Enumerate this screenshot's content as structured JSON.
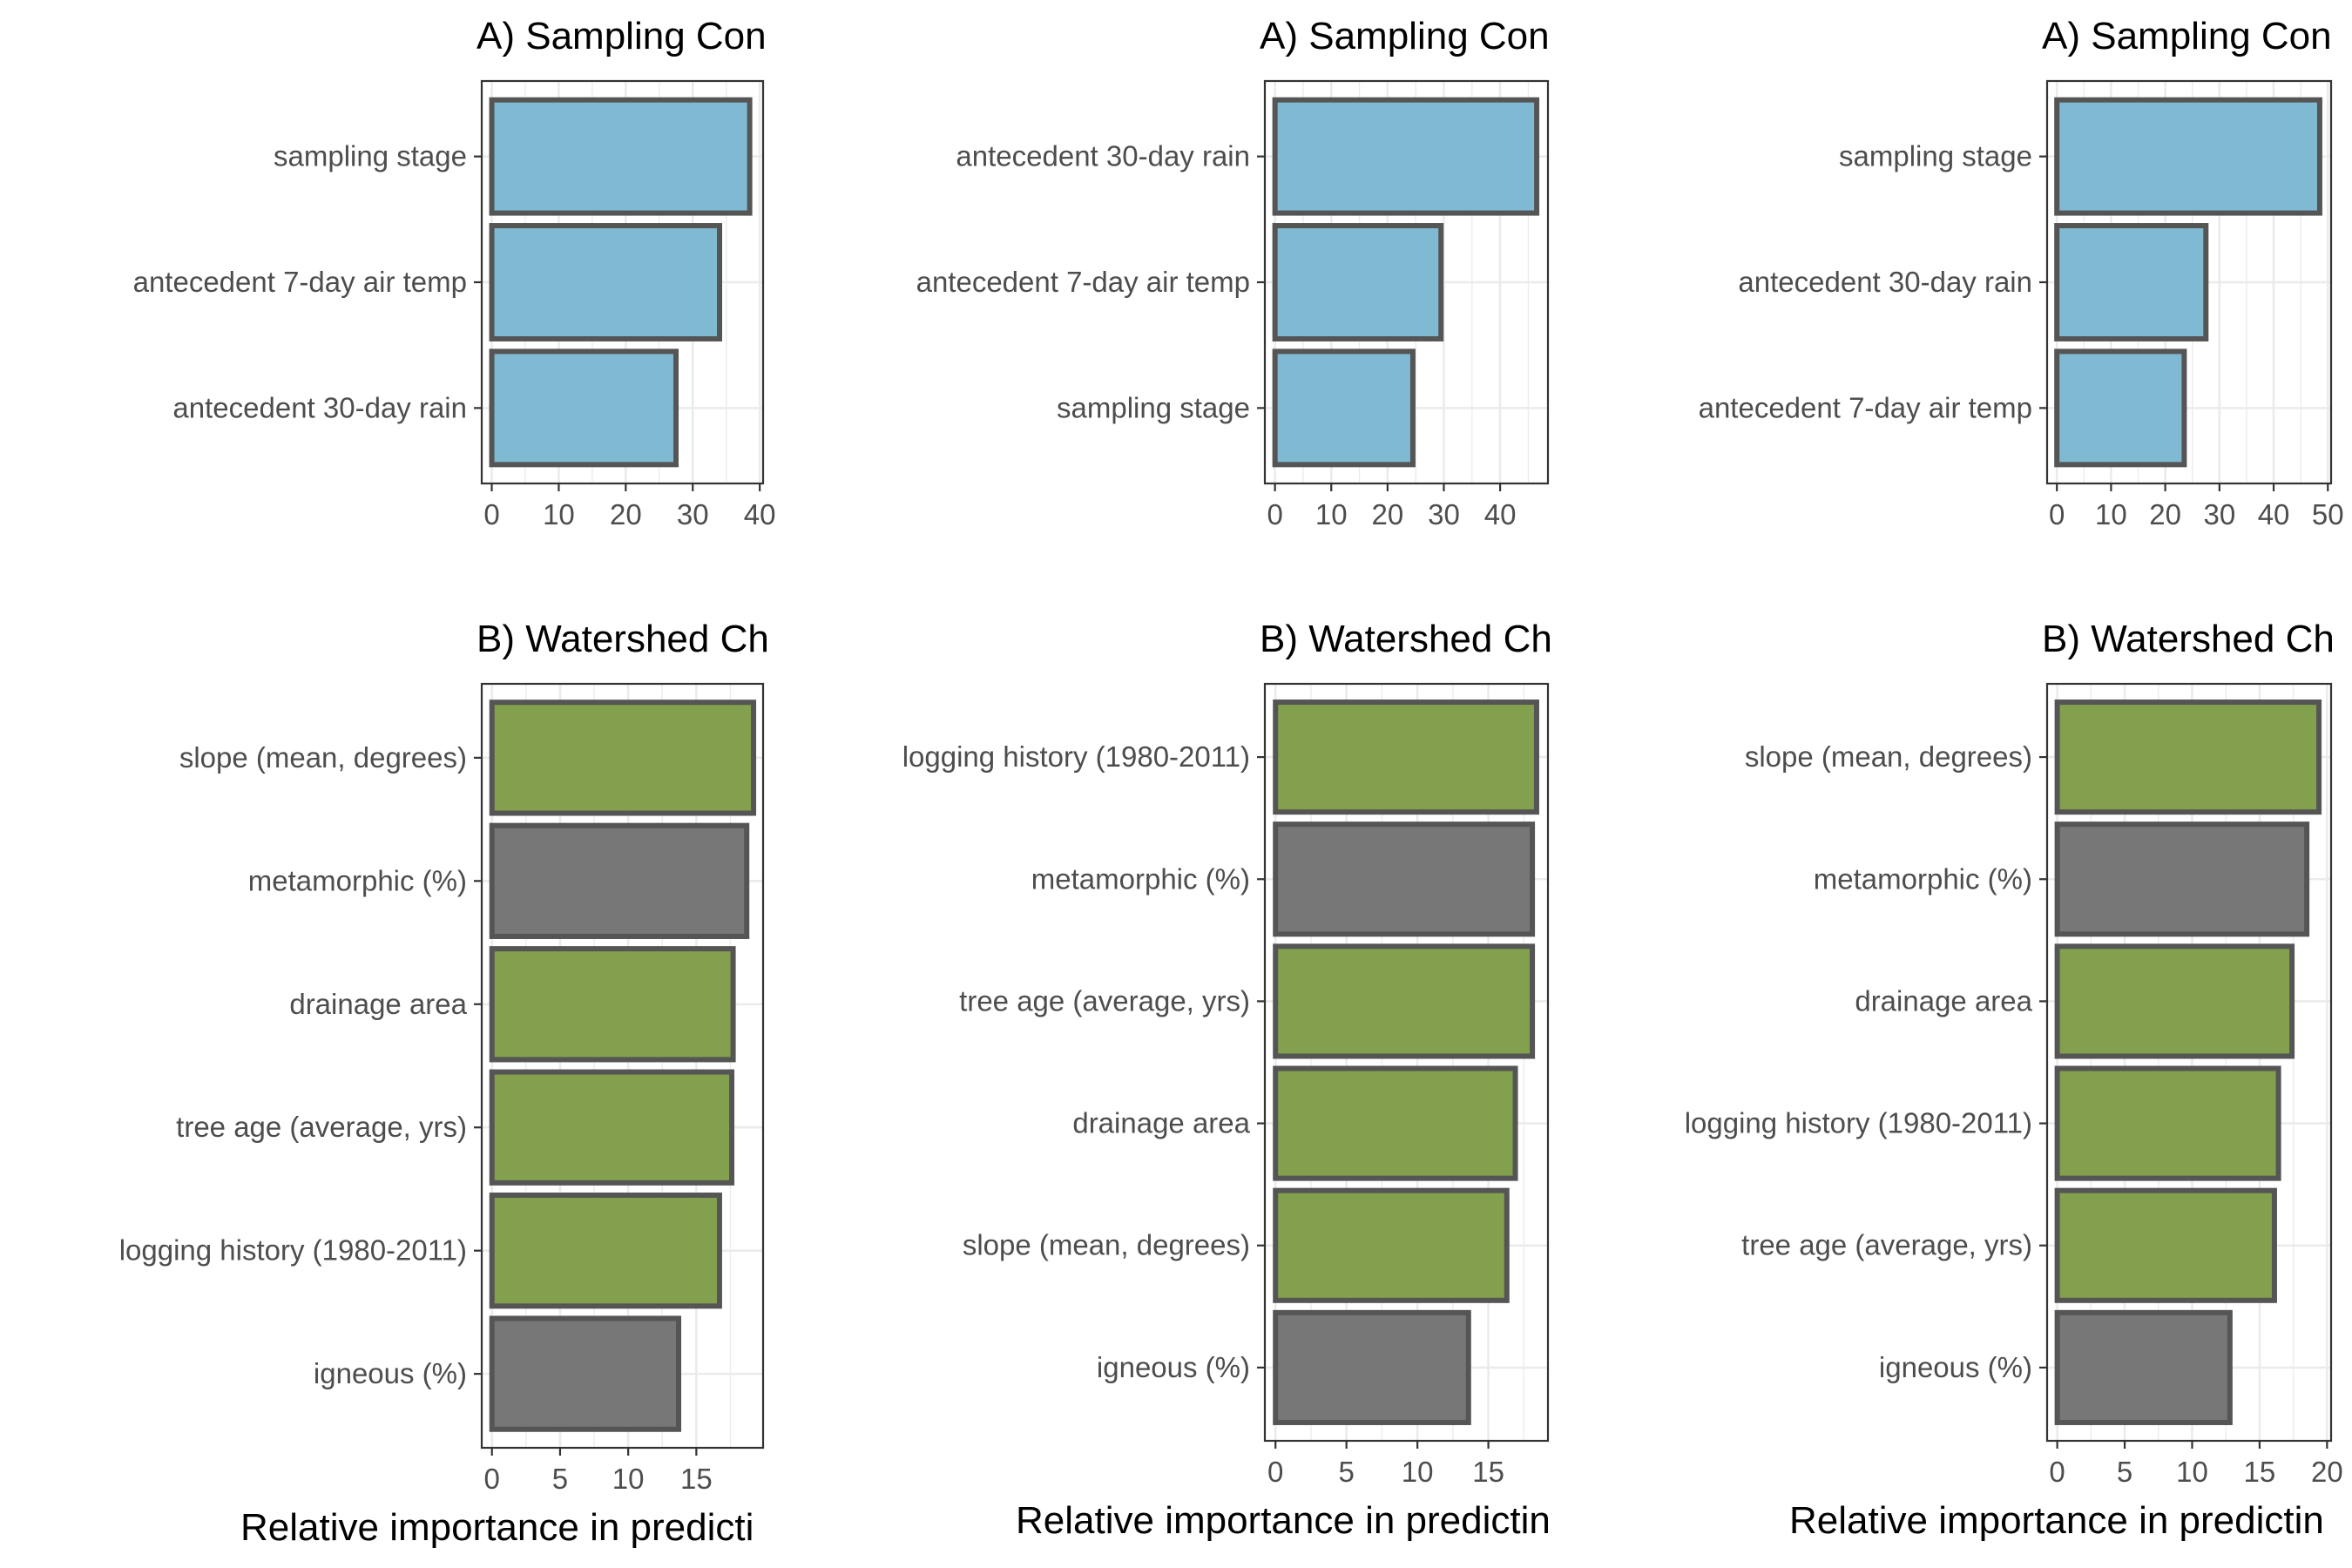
{
  "colors": {
    "climate": "#7FBAD2",
    "landcover": "#82A04D",
    "geology": "#777777",
    "bar_outline": "#555555",
    "grid": "#EBEBEB",
    "panel_border": "#333333",
    "axis_text": "#4D4D4D",
    "title_text": "#000000"
  },
  "chart_data": [
    {
      "type": "bar",
      "orientation": "horizontal",
      "title": "A) Sampling Con",
      "xlabel": "",
      "categories": [
        "sampling stage",
        "antecedent 7-day air temp",
        "antecedent 30-day rain"
      ],
      "values": [
        38.5,
        34,
        27.5
      ],
      "groups": [
        "climate",
        "climate",
        "climate"
      ],
      "xlim": [
        -1.5,
        40.5
      ],
      "xticks": [
        0,
        10,
        20,
        30,
        40
      ],
      "grid": true
    },
    {
      "type": "bar",
      "orientation": "horizontal",
      "title": "A) Sampling Con",
      "xlabel": "",
      "categories": [
        "antecedent 30-day rain",
        "antecedent 7-day air temp",
        "sampling stage"
      ],
      "values": [
        46.5,
        29.5,
        24.5
      ],
      "groups": [
        "climate",
        "climate",
        "climate"
      ],
      "xlim": [
        -1.8,
        48.5
      ],
      "xticks": [
        0,
        10,
        20,
        30,
        40
      ],
      "grid": true
    },
    {
      "type": "bar",
      "orientation": "horizontal",
      "title": "A) Sampling Con",
      "xlabel": "",
      "categories": [
        "sampling stage",
        "antecedent 30-day rain",
        "antecedent 7-day air temp"
      ],
      "values": [
        48.5,
        27.5,
        23.5
      ],
      "groups": [
        "climate",
        "climate",
        "climate"
      ],
      "xlim": [
        -1.8,
        50.6
      ],
      "xticks": [
        0,
        10,
        20,
        30,
        40,
        50
      ],
      "grid": true
    },
    {
      "type": "bar",
      "orientation": "horizontal",
      "title": "B) Watershed Ch",
      "xlabel": "Relative importance in predicti",
      "categories": [
        "slope (mean, degrees)",
        "metamorphic (%)",
        "drainage area",
        "tree age (average, yrs)",
        "logging history (1980-2011)",
        "igneous (%)"
      ],
      "values": [
        19.2,
        18.7,
        17.7,
        17.6,
        16.7,
        13.7
      ],
      "groups": [
        "landcover",
        "geology",
        "landcover",
        "landcover",
        "landcover",
        "geology"
      ],
      "xlim": [
        -0.75,
        19.9
      ],
      "xticks": [
        0,
        5,
        10,
        15
      ],
      "grid": true
    },
    {
      "type": "bar",
      "orientation": "horizontal",
      "title": "B) Watershed Ch",
      "xlabel": "Relative importance in predictin",
      "categories": [
        "logging history (1980-2011)",
        "metamorphic (%)",
        "tree age (average, yrs)",
        "drainage area",
        "slope (mean, degrees)",
        "igneous (%)"
      ],
      "values": [
        18.4,
        18.1,
        18.1,
        16.9,
        16.3,
        13.6
      ],
      "groups": [
        "landcover",
        "geology",
        "landcover",
        "landcover",
        "landcover",
        "geology"
      ],
      "xlim": [
        -0.75,
        19.2
      ],
      "xticks": [
        0,
        5,
        10,
        15
      ],
      "grid": true
    },
    {
      "type": "bar",
      "orientation": "horizontal",
      "title": "B) Watershed Ch",
      "xlabel": "Relative importance in predictin",
      "categories": [
        "slope (mean, degrees)",
        "metamorphic (%)",
        "drainage area",
        "logging history (1980-2011)",
        "tree age (average, yrs)",
        "igneous (%)"
      ],
      "values": [
        19.4,
        18.5,
        17.4,
        16.4,
        16.1,
        12.8
      ],
      "groups": [
        "landcover",
        "geology",
        "landcover",
        "landcover",
        "landcover",
        "geology"
      ],
      "xlim": [
        -0.75,
        20.3
      ],
      "xticks": [
        0,
        5,
        10,
        15,
        20
      ],
      "grid": true
    }
  ]
}
